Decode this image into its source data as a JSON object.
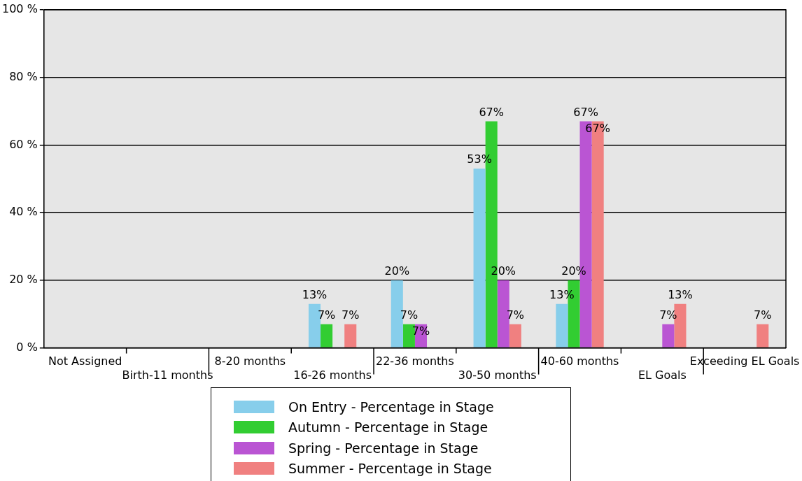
{
  "chart_data": {
    "type": "bar",
    "categories": [
      "Not Assigned",
      "Birth-11 months",
      "8-20 months",
      "16-26 months",
      "22-36 months",
      "30-50 months",
      "40-60 months",
      "EL Goals",
      "Exceeding EL Goals"
    ],
    "series": [
      {
        "name": "On Entry - Percentage in Stage",
        "color": "#87ceeb",
        "values": [
          0,
          0,
          0,
          13,
          20,
          53,
          13,
          0,
          0
        ],
        "value_labels": [
          null,
          null,
          null,
          "13%",
          "20%",
          "53%",
          "13%",
          null,
          null
        ]
      },
      {
        "name": "Autumn - Percentage in Stage",
        "color": "#32cd32",
        "values": [
          0,
          0,
          0,
          7,
          7,
          67,
          20,
          0,
          0
        ],
        "value_labels": [
          null,
          null,
          null,
          "7%",
          "7%",
          "67%",
          "20%",
          null,
          null
        ]
      },
      {
        "name": "Spring - Percentage in Stage",
        "color": "#ba55d3",
        "values": [
          0,
          0,
          0,
          0,
          7,
          20,
          67,
          7,
          0
        ],
        "value_labels": [
          null,
          null,
          null,
          null,
          "7%",
          "20%",
          "67%",
          "7%",
          null
        ]
      },
      {
        "name": "Summer - Percentage in Stage",
        "color": "#f08080",
        "values": [
          0,
          0,
          0,
          7,
          0,
          7,
          67,
          13,
          7
        ],
        "value_labels": [
          null,
          null,
          null,
          "7%",
          null,
          "7%",
          "67%",
          "13%",
          "7%"
        ]
      }
    ],
    "ylim": [
      0,
      100
    ],
    "yticks": [
      {
        "value": 0,
        "label": "0 %"
      },
      {
        "value": 20,
        "label": "20 %"
      },
      {
        "value": 40,
        "label": "40 %"
      },
      {
        "value": 60,
        "label": "60 %"
      },
      {
        "value": 80,
        "label": "80 %"
      },
      {
        "value": 100,
        "label": "100 %"
      }
    ],
    "grid": "y",
    "legend": "bottom"
  }
}
